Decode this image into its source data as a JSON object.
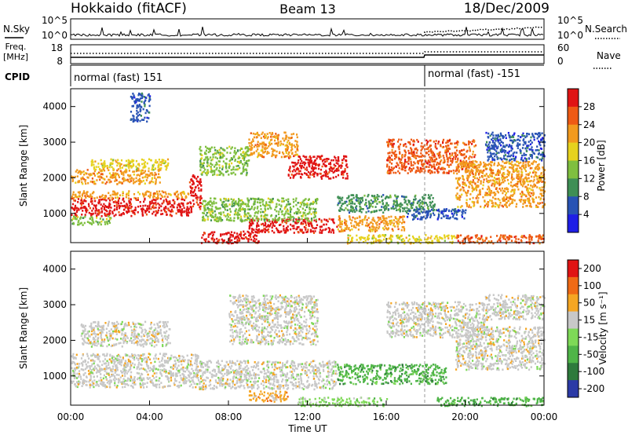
{
  "header": {
    "station": "Hokkaido (fitACF)",
    "beam": "Beam 13",
    "date": "18/Dec/2009"
  },
  "noise_panel": {
    "left_label": "N.Sky",
    "right_label": "N.Search",
    "left_ticks": [
      "10^5",
      "10^0"
    ],
    "right_ticks": [
      "10^5",
      "10^0"
    ]
  },
  "freq_panel": {
    "left_label_1": "Freq.",
    "left_label_2": "[MHz]",
    "right_label": "Nave",
    "left_ticks": [
      "18",
      "8"
    ],
    "right_ticks": [
      "60",
      "0"
    ]
  },
  "cpid_panel": {
    "label": "CPID",
    "modes": [
      "normal (fast) 151",
      "normal (fast) -151"
    ],
    "change_hour": 18.0
  },
  "chart_data": [
    {
      "type": "heatmap",
      "name": "power",
      "ylabel": "Slant Range [km]",
      "xlabel": "",
      "xlim": [
        0,
        24
      ],
      "ylim": [
        180,
        4500
      ],
      "y_ticks": [
        "1000",
        "2000",
        "3000",
        "4000"
      ],
      "colorbar_label": "Power [dB]",
      "colorbar_ticks": [
        "4",
        "8",
        "12",
        "16",
        "20",
        "24",
        "28"
      ],
      "colors": [
        "#1e1ee6",
        "#2853b4",
        "#3f8f55",
        "#7fbf3f",
        "#e6d21e",
        "#f29a1e",
        "#ee5a14",
        "#e01414"
      ],
      "regions": [
        {
          "t0": 0.0,
          "t1": 6.1,
          "r0": 950,
          "r1": 1450,
          "c": 7
        },
        {
          "t0": 0.0,
          "t1": 6.0,
          "r0": 1450,
          "r1": 1650,
          "c": 5
        },
        {
          "t0": 0.0,
          "t1": 4.5,
          "r0": 1850,
          "r1": 2250,
          "c": 5
        },
        {
          "t0": 1.0,
          "t1": 5.0,
          "r0": 2250,
          "r1": 2550,
          "c": 4
        },
        {
          "t0": 0.0,
          "t1": 2.0,
          "r0": 700,
          "r1": 950,
          "c": 3
        },
        {
          "t0": 6.0,
          "t1": 6.6,
          "r0": 1150,
          "r1": 2100,
          "c": 7
        },
        {
          "t0": 6.6,
          "t1": 9.5,
          "r0": 180,
          "r1": 520,
          "c": 7
        },
        {
          "t0": 9.0,
          "t1": 13.5,
          "r0": 480,
          "r1": 880,
          "c": 7
        },
        {
          "t0": 13.5,
          "t1": 17.0,
          "r0": 520,
          "r1": 950,
          "c": 5
        },
        {
          "t0": 6.6,
          "t1": 12.5,
          "r0": 800,
          "r1": 1450,
          "c": 3
        },
        {
          "t0": 11.0,
          "t1": 14.0,
          "r0": 2000,
          "r1": 2650,
          "c": 7
        },
        {
          "t0": 9.0,
          "t1": 11.5,
          "r0": 2600,
          "r1": 3300,
          "c": 5
        },
        {
          "t0": 6.5,
          "t1": 9.0,
          "r0": 2100,
          "r1": 2900,
          "c": 3
        },
        {
          "t0": 13.5,
          "t1": 18.5,
          "r0": 1050,
          "r1": 1550,
          "c": 2
        },
        {
          "t0": 14.0,
          "t1": 19.5,
          "r0": 180,
          "r1": 420,
          "c": 4
        },
        {
          "t0": 19.5,
          "t1": 24.0,
          "r0": 180,
          "r1": 420,
          "c": 6
        },
        {
          "t0": 17.0,
          "t1": 20.0,
          "r0": 850,
          "r1": 1150,
          "c": 1
        },
        {
          "t0": 16.0,
          "t1": 20.5,
          "r0": 2150,
          "r1": 3100,
          "c": 6
        },
        {
          "t0": 19.5,
          "t1": 24.0,
          "r0": 1200,
          "r1": 2500,
          "c": 5
        },
        {
          "t0": 21.0,
          "t1": 24.0,
          "r0": 2500,
          "r1": 3300,
          "c": 1
        },
        {
          "t0": 3.0,
          "t1": 4.0,
          "r0": 3600,
          "r1": 4400,
          "c": 1
        }
      ]
    },
    {
      "type": "heatmap",
      "name": "velocity",
      "ylabel": "Slant Range [km]",
      "xlabel": "Time UT",
      "xlim": [
        0,
        24
      ],
      "ylim": [
        180,
        4500
      ],
      "x_ticks": [
        "00:00",
        "04:00",
        "08:00",
        "12:00",
        "16:00",
        "20:00",
        "00:00"
      ],
      "y_ticks": [
        "1000",
        "2000",
        "3000",
        "4000"
      ],
      "colorbar_label": "Velocity [m s⁻¹]",
      "colorbar_ticks": [
        "200",
        "100",
        "50",
        "15",
        "-15",
        "-50",
        "-100",
        "-200"
      ],
      "colors": [
        "#2b3aa6",
        "#2e7a3c",
        "#4fb548",
        "#7ed957",
        "#c8c8c8",
        "#f5a623",
        "#ef6a15",
        "#e01414"
      ],
      "regions": [
        {
          "t0": 0.0,
          "t1": 6.5,
          "r0": 700,
          "r1": 1650,
          "c": 4
        },
        {
          "t0": 0.5,
          "t1": 5.0,
          "r0": 1850,
          "r1": 2550,
          "c": 4
        },
        {
          "t0": 6.5,
          "t1": 13.5,
          "r0": 650,
          "r1": 1450,
          "c": 4
        },
        {
          "t0": 9.0,
          "t1": 11.0,
          "r0": 300,
          "r1": 600,
          "c": 5
        },
        {
          "t0": 11.5,
          "t1": 16.0,
          "r0": 180,
          "r1": 420,
          "c": 3
        },
        {
          "t0": 13.5,
          "t1": 19.0,
          "r0": 800,
          "r1": 1350,
          "c": 2
        },
        {
          "t0": 8.0,
          "t1": 12.5,
          "r0": 1900,
          "r1": 3300,
          "c": 4
        },
        {
          "t0": 16.0,
          "t1": 21.0,
          "r0": 2100,
          "r1": 3100,
          "c": 4
        },
        {
          "t0": 19.5,
          "t1": 24.0,
          "r0": 1200,
          "r1": 2400,
          "c": 4
        },
        {
          "t0": 18.5,
          "t1": 24.0,
          "r0": 180,
          "r1": 420,
          "c": 2
        },
        {
          "t0": 21.0,
          "t1": 24.0,
          "r0": 2600,
          "r1": 3300,
          "c": 4
        }
      ]
    }
  ]
}
